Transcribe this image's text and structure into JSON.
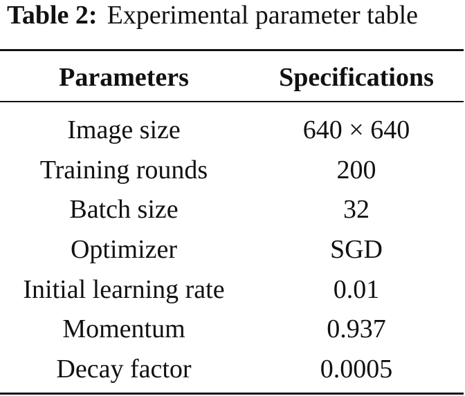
{
  "caption": {
    "label": "Table 2:",
    "text": "Experimental parameter table"
  },
  "table": {
    "headers": [
      "Parameters",
      "Specifications"
    ],
    "rows": [
      [
        "Image size",
        "640 × 640"
      ],
      [
        "Training rounds",
        "200"
      ],
      [
        "Batch size",
        "32"
      ],
      [
        "Optimizer",
        "SGD"
      ],
      [
        "Initial learning rate",
        "0.01"
      ],
      [
        "Momentum",
        "0.937"
      ],
      [
        "Decay factor",
        "0.0005"
      ]
    ]
  }
}
